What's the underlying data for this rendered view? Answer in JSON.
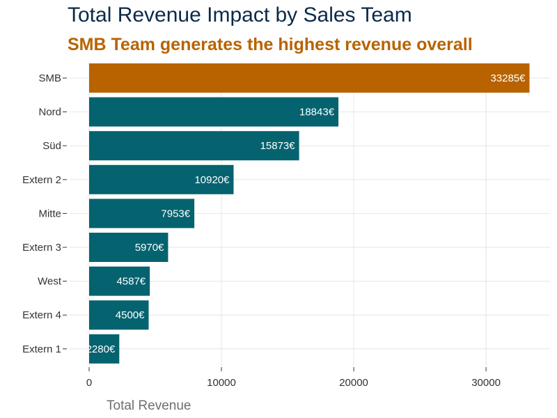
{
  "chart_data": {
    "type": "bar",
    "orientation": "horizontal",
    "title": "Total Revenue Impact by Sales Team",
    "subtitle": "SMB Team generates the highest revenue overall",
    "xlabel": "Total Revenue",
    "ylabel": "",
    "categories": [
      "SMB",
      "Nord",
      "Süd",
      "Extern 2",
      "Mitte",
      "Extern 3",
      "West",
      "Extern 4",
      "Extern 1"
    ],
    "values": [
      33285,
      18843,
      15873,
      10920,
      7953,
      5970,
      4587,
      4500,
      2280
    ],
    "value_labels": [
      "33285€",
      "18843€",
      "15873€",
      "10920€",
      "7953€",
      "5970€",
      "4587€",
      "4500€",
      "2280€"
    ],
    "xlim": [
      0,
      35000
    ],
    "x_ticks": [
      0,
      10000,
      20000,
      30000
    ],
    "x_tick_labels": [
      "0",
      "10000",
      "20000",
      "30000"
    ],
    "grid": true,
    "legend": "none",
    "highlight_index": 0,
    "colors": {
      "highlight": "#b86300",
      "default": "#05636f",
      "title": "#0b2a4a",
      "subtitle": "#b86300"
    }
  }
}
